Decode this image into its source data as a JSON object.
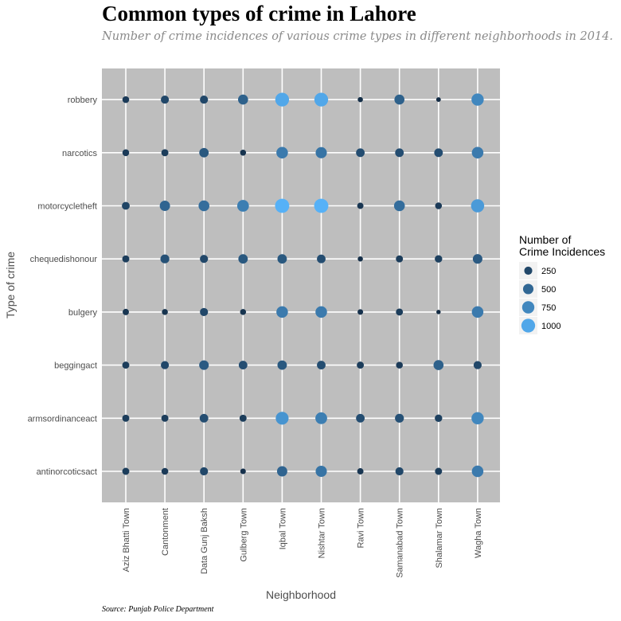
{
  "title": "Common types of crime in Lahore",
  "subtitle": "Number of crime incidences of various crime types in different neighborhoods in 2014.",
  "source": "Source: Punjab Police Department",
  "chart_data": {
    "type": "scatter",
    "xlabel": "Neighborhood",
    "ylabel": "Type of crime",
    "x_categories": [
      "Aziz Bhatti Town",
      "Cantonment",
      "Data Gunj Baksh",
      "Gulberg Town",
      "Iqbal Town",
      "Nishtar Town",
      "Ravi Town",
      "Samanabad Town",
      "Shalamar Town",
      "Wagha Town"
    ],
    "y_categories": [
      "antinorcoticsact",
      "armsordinanceact",
      "beggingact",
      "bulgery",
      "chequedishonour",
      "motorcycletheft",
      "narcotics",
      "robbery"
    ],
    "values": {
      "robbery": [
        150,
        250,
        250,
        450,
        1000,
        1000,
        60,
        450,
        40,
        750
      ],
      "narcotics": [
        150,
        170,
        380,
        100,
        650,
        600,
        300,
        300,
        300,
        650
      ],
      "motorcycletheft": [
        230,
        480,
        550,
        680,
        1080,
        1080,
        120,
        550,
        150,
        900
      ],
      "chequedishonour": [
        170,
        330,
        250,
        380,
        380,
        300,
        60,
        170,
        200,
        400
      ],
      "bulgery": [
        120,
        100,
        250,
        100,
        650,
        650,
        80,
        170,
        30,
        650
      ],
      "beggingact": [
        170,
        250,
        400,
        300,
        380,
        300,
        170,
        150,
        450,
        250
      ],
      "armsordinanceact": [
        170,
        170,
        300,
        170,
        850,
        680,
        300,
        330,
        200,
        750
      ],
      "antinorcoticsact": [
        170,
        150,
        250,
        80,
        480,
        600,
        120,
        250,
        170,
        650
      ]
    },
    "legend": {
      "title_line1": "Number of",
      "title_line2": "Crime Incidences",
      "entries": [
        250,
        500,
        750,
        1000
      ],
      "placement": "right"
    },
    "size_and_color_encode": "Number of Crime Incidences",
    "color_low": "#132B43",
    "color_high": "#56B1F7",
    "panel_background": "#BEBEBE",
    "grid": true
  }
}
